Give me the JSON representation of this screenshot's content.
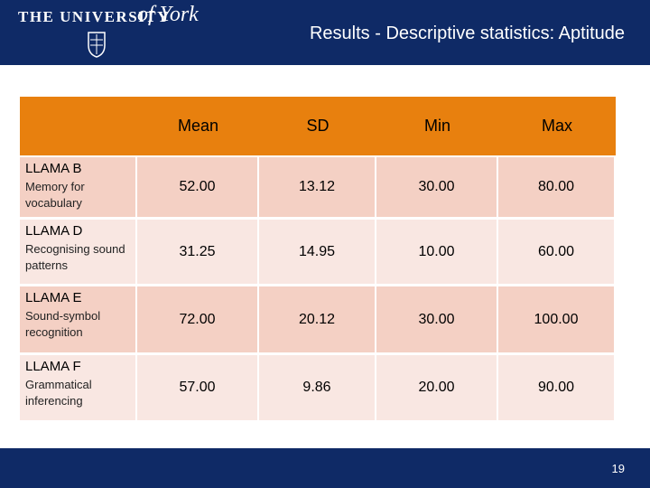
{
  "header": {
    "logo_text": "THE UNIVERSITY",
    "logo_script": "of York",
    "title": "Results - Descriptive statistics: Aptitude"
  },
  "table": {
    "columns": [
      "Mean",
      "SD",
      "Min",
      "Max"
    ],
    "rows": [
      {
        "name": "LLAMA B",
        "description": "Memory for vocabulary",
        "cells": [
          "52.00",
          "13.12",
          "30.00",
          "80.00"
        ]
      },
      {
        "name": "LLAMA D",
        "description": "Recognising sound patterns",
        "cells": [
          "31.25",
          "14.95",
          "10.00",
          "60.00"
        ]
      },
      {
        "name": "LLAMA E",
        "description": "Sound-symbol recognition",
        "cells": [
          "72.00",
          "20.12",
          "30.00",
          "100.00"
        ]
      },
      {
        "name": "LLAMA F",
        "description": "Grammatical inferencing",
        "cells": [
          "57.00",
          "9.86",
          "20.00",
          "90.00"
        ]
      }
    ]
  },
  "footer": {
    "page_number": "19"
  }
}
